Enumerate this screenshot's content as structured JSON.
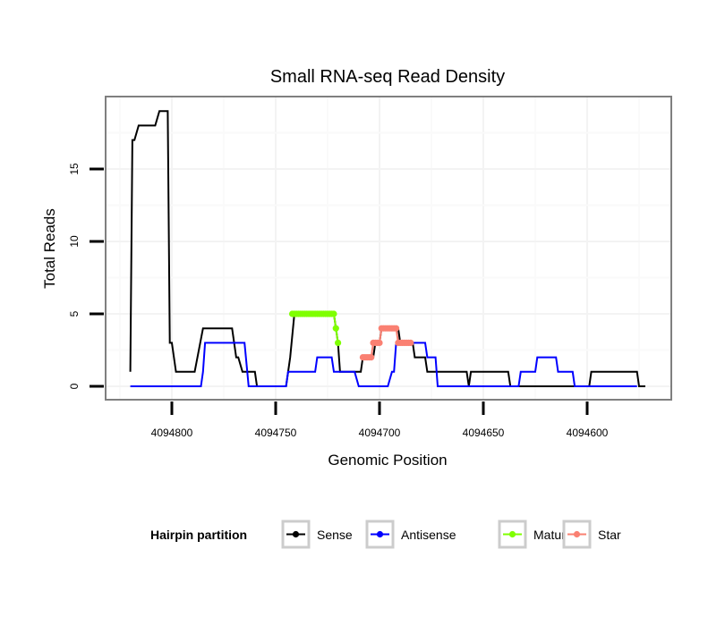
{
  "chart_data": {
    "type": "line",
    "title": "Small RNA-seq Read Density",
    "xlabel": "Genomic Position",
    "ylabel": "Total Reads",
    "x_reversed": true,
    "xlim": [
      4094820,
      4094572
    ],
    "ylim": [
      0,
      19
    ],
    "x_ticks": [
      4094800,
      4094750,
      4094700,
      4094650,
      4094600
    ],
    "x_tick_labels": [
      "4094800",
      "4094750",
      "4094700",
      "4094650",
      "4094600"
    ],
    "y_ticks": [
      0,
      5,
      10,
      15
    ],
    "y_tick_labels": [
      "0",
      "5",
      "10",
      "15"
    ],
    "grid": true,
    "legend": {
      "title": "Hairpin partition",
      "position": "bottom",
      "entries": [
        {
          "label": "Sense",
          "color": "#000000"
        },
        {
          "label": "Antisense",
          "color": "#0000ff"
        },
        {
          "label": "Mature",
          "color": "#7fff00"
        },
        {
          "label": "Star",
          "color": "#fa8072"
        }
      ]
    },
    "series": [
      {
        "name": "Sense",
        "color": "#000000",
        "style": "line",
        "x": [
          4094820,
          4094819,
          4094818,
          4094816,
          4094808,
          4094806,
          4094802,
          4094801,
          4094800,
          4094798,
          4094789,
          4094785,
          4094771,
          4094769,
          4094768,
          4094766,
          4094760,
          4094759,
          4094745,
          4094744,
          4094743,
          4094741,
          4094722,
          4094721,
          4094720,
          4094719,
          4094709,
          4094708,
          4094703,
          4094702,
          4094700,
          4094699,
          4094691,
          4094690,
          4094684,
          4094683,
          4094678,
          4094677,
          4094658,
          4094657,
          4094656,
          4094638,
          4094637,
          4094599,
          4094598,
          4094576,
          4094575,
          4094572
        ],
        "values": [
          1,
          17,
          17,
          18,
          18,
          19,
          19,
          3,
          3,
          1,
          1,
          4,
          4,
          2,
          2,
          1,
          1,
          0,
          0,
          1,
          2,
          5,
          5,
          4,
          3,
          1,
          1,
          2,
          2,
          3,
          3,
          4,
          4,
          3,
          3,
          2,
          2,
          1,
          1,
          0,
          1,
          1,
          0,
          0,
          1,
          1,
          0,
          0
        ]
      },
      {
        "name": "Antisense",
        "color": "#0000ff",
        "style": "line",
        "x": [
          4094820,
          4094786,
          4094785,
          4094784,
          4094765,
          4094763,
          4094745,
          4094744,
          4094731,
          4094730,
          4094723,
          4094722,
          4094712,
          4094710,
          4094696,
          4094694,
          4094693,
          4094692,
          4094678,
          4094677,
          4094673,
          4094672,
          4094633,
          4094632,
          4094625,
          4094624,
          4094615,
          4094614,
          4094607,
          4094606,
          4094576
        ],
        "values": [
          0,
          0,
          1,
          3,
          3,
          0,
          0,
          1,
          1,
          2,
          2,
          1,
          1,
          0,
          0,
          1,
          1,
          3,
          3,
          2,
          2,
          0,
          0,
          1,
          1,
          2,
          2,
          1,
          1,
          0,
          0
        ]
      },
      {
        "name": "Mature",
        "color": "#7fff00",
        "style": "points",
        "x": [
          4094742,
          4094741,
          4094740,
          4094739,
          4094738,
          4094737,
          4094736,
          4094735,
          4094734,
          4094733,
          4094732,
          4094731,
          4094730,
          4094729,
          4094728,
          4094727,
          4094726,
          4094725,
          4094724,
          4094723,
          4094722,
          4094721,
          4094720
        ],
        "values": [
          5,
          5,
          5,
          5,
          5,
          5,
          5,
          5,
          5,
          5,
          5,
          5,
          5,
          5,
          5,
          5,
          5,
          5,
          5,
          5,
          5,
          4,
          3
        ]
      },
      {
        "name": "Star",
        "color": "#fa8072",
        "style": "points",
        "x": [
          4094708,
          4094707,
          4094706,
          4094705,
          4094704,
          4094703,
          4094702,
          4094701,
          4094700,
          4094699,
          4094698,
          4094697,
          4094696,
          4094695,
          4094694,
          4094693,
          4094692,
          4094691,
          4094690,
          4094689,
          4094688,
          4094687,
          4094686,
          4094685
        ],
        "values": [
          2,
          2,
          2,
          2,
          2,
          3,
          3,
          3,
          3,
          4,
          4,
          4,
          4,
          4,
          4,
          4,
          4,
          3,
          3,
          3,
          3,
          3,
          3,
          3
        ]
      }
    ]
  }
}
